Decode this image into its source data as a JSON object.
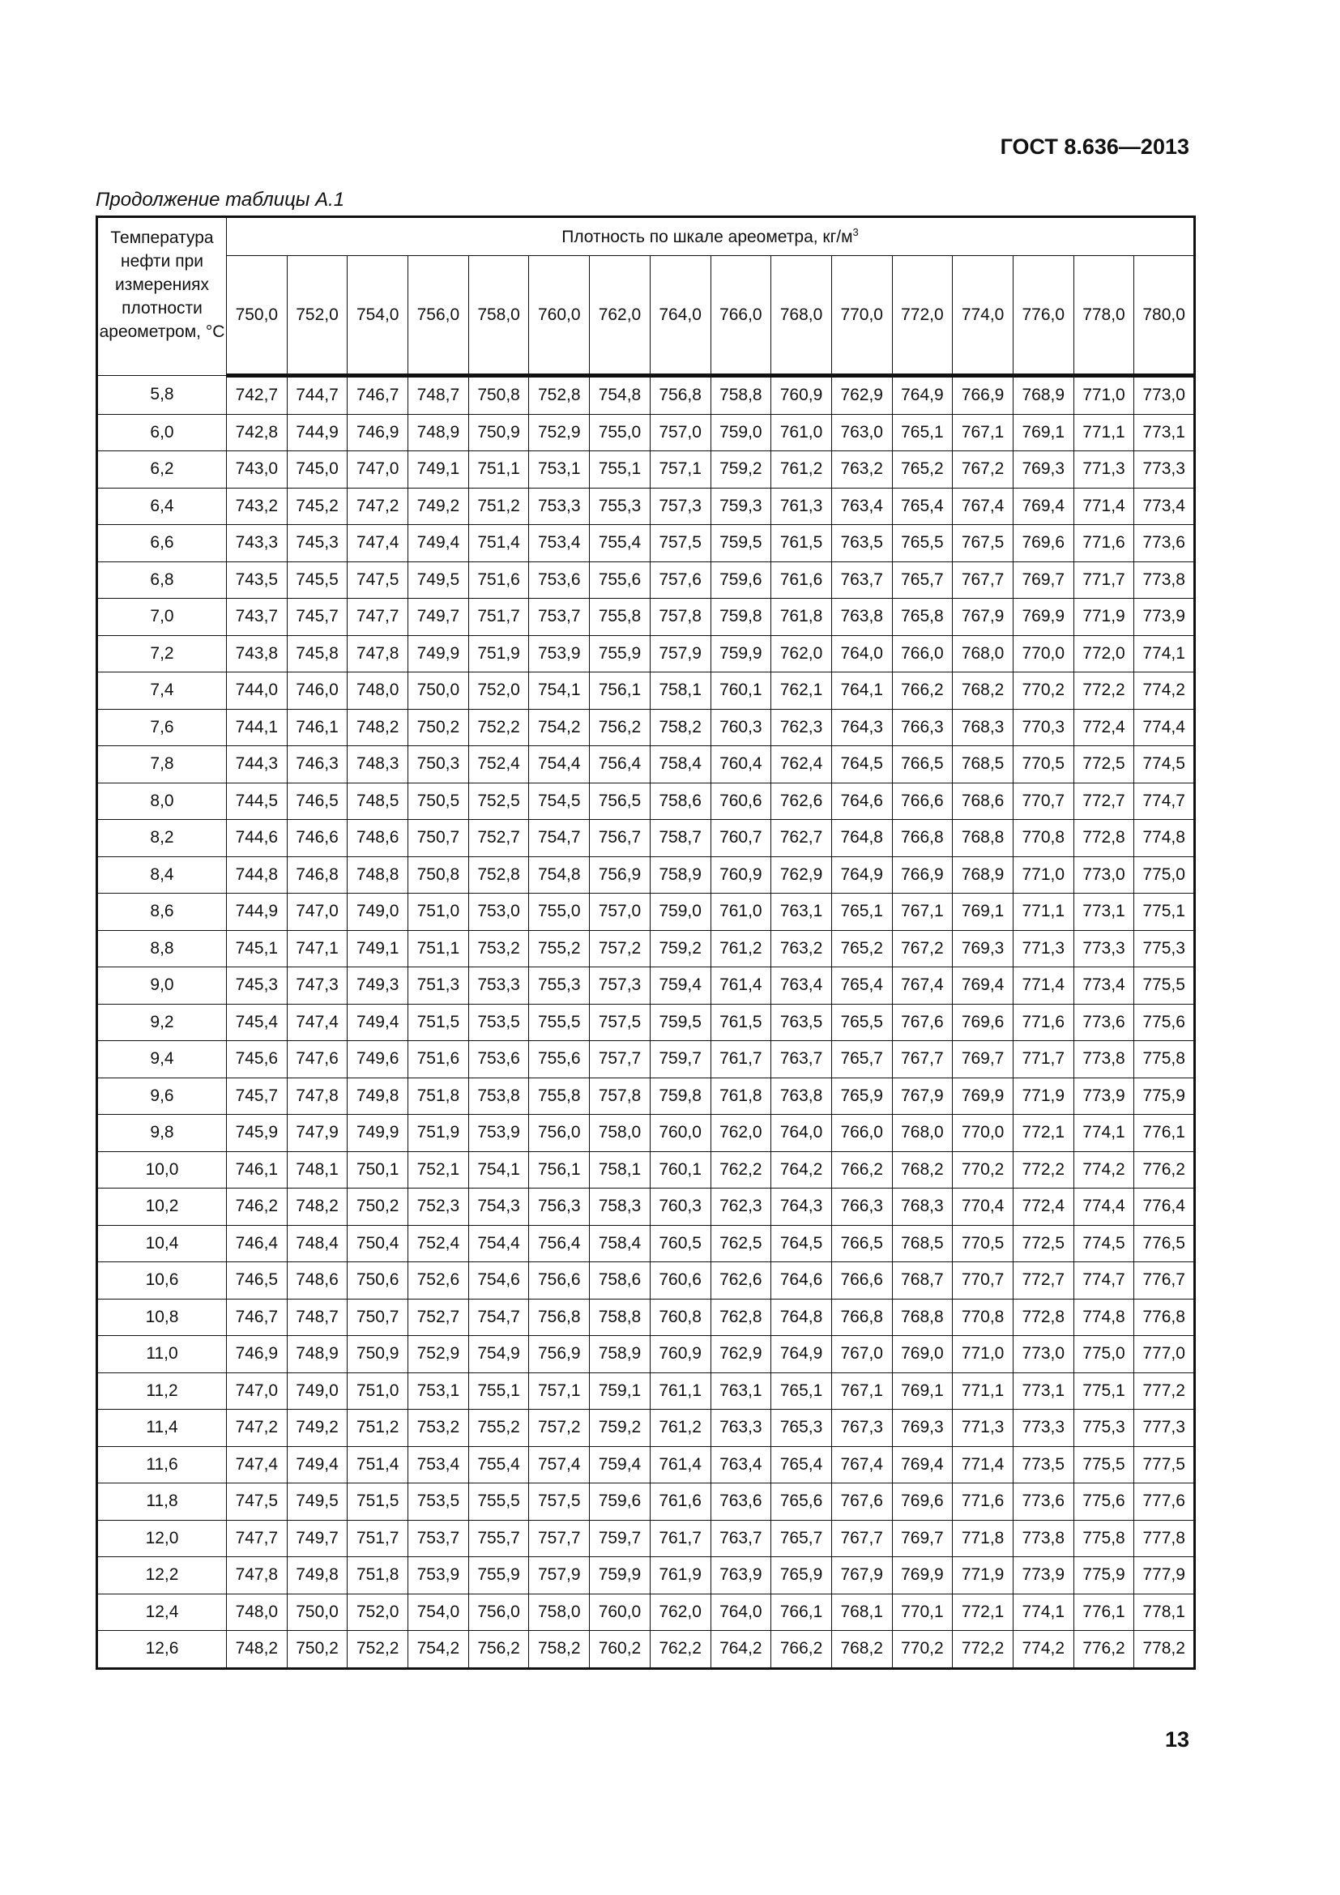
{
  "header": {
    "doc_code": "ГОСТ 8.636—2013"
  },
  "caption": "Продолжение таблицы А.1",
  "table": {
    "temp_header": "Температура нефти при измерениях плотности ареометром, °С",
    "group_header": "Плотность по шкале ареометра, кг/м",
    "group_header_sup": "3",
    "columns": [
      "750,0",
      "752,0",
      "754,0",
      "756,0",
      "758,0",
      "760,0",
      "762,0",
      "764,0",
      "766,0",
      "768,0",
      "770,0",
      "772,0",
      "774,0",
      "776,0",
      "778,0",
      "780,0"
    ],
    "rows": [
      {
        "t": "5,8",
        "v": [
          "742,7",
          "744,7",
          "746,7",
          "748,7",
          "750,8",
          "752,8",
          "754,8",
          "756,8",
          "758,8",
          "760,9",
          "762,9",
          "764,9",
          "766,9",
          "768,9",
          "771,0",
          "773,0"
        ]
      },
      {
        "t": "6,0",
        "v": [
          "742,8",
          "744,9",
          "746,9",
          "748,9",
          "750,9",
          "752,9",
          "755,0",
          "757,0",
          "759,0",
          "761,0",
          "763,0",
          "765,1",
          "767,1",
          "769,1",
          "771,1",
          "773,1"
        ]
      },
      {
        "t": "6,2",
        "v": [
          "743,0",
          "745,0",
          "747,0",
          "749,1",
          "751,1",
          "753,1",
          "755,1",
          "757,1",
          "759,2",
          "761,2",
          "763,2",
          "765,2",
          "767,2",
          "769,3",
          "771,3",
          "773,3"
        ]
      },
      {
        "t": "6,4",
        "v": [
          "743,2",
          "745,2",
          "747,2",
          "749,2",
          "751,2",
          "753,3",
          "755,3",
          "757,3",
          "759,3",
          "761,3",
          "763,4",
          "765,4",
          "767,4",
          "769,4",
          "771,4",
          "773,4"
        ]
      },
      {
        "t": "6,6",
        "v": [
          "743,3",
          "745,3",
          "747,4",
          "749,4",
          "751,4",
          "753,4",
          "755,4",
          "757,5",
          "759,5",
          "761,5",
          "763,5",
          "765,5",
          "767,5",
          "769,6",
          "771,6",
          "773,6"
        ]
      },
      {
        "t": "6,8",
        "v": [
          "743,5",
          "745,5",
          "747,5",
          "749,5",
          "751,6",
          "753,6",
          "755,6",
          "757,6",
          "759,6",
          "761,6",
          "763,7",
          "765,7",
          "767,7",
          "769,7",
          "771,7",
          "773,8"
        ]
      },
      {
        "t": "7,0",
        "v": [
          "743,7",
          "745,7",
          "747,7",
          "749,7",
          "751,7",
          "753,7",
          "755,8",
          "757,8",
          "759,8",
          "761,8",
          "763,8",
          "765,8",
          "767,9",
          "769,9",
          "771,9",
          "773,9"
        ]
      },
      {
        "t": "7,2",
        "v": [
          "743,8",
          "745,8",
          "747,8",
          "749,9",
          "751,9",
          "753,9",
          "755,9",
          "757,9",
          "759,9",
          "762,0",
          "764,0",
          "766,0",
          "768,0",
          "770,0",
          "772,0",
          "774,1"
        ]
      },
      {
        "t": "7,4",
        "v": [
          "744,0",
          "746,0",
          "748,0",
          "750,0",
          "752,0",
          "754,1",
          "756,1",
          "758,1",
          "760,1",
          "762,1",
          "764,1",
          "766,2",
          "768,2",
          "770,2",
          "772,2",
          "774,2"
        ]
      },
      {
        "t": "7,6",
        "v": [
          "744,1",
          "746,1",
          "748,2",
          "750,2",
          "752,2",
          "754,2",
          "756,2",
          "758,2",
          "760,3",
          "762,3",
          "764,3",
          "766,3",
          "768,3",
          "770,3",
          "772,4",
          "774,4"
        ]
      },
      {
        "t": "7,8",
        "v": [
          "744,3",
          "746,3",
          "748,3",
          "750,3",
          "752,4",
          "754,4",
          "756,4",
          "758,4",
          "760,4",
          "762,4",
          "764,5",
          "766,5",
          "768,5",
          "770,5",
          "772,5",
          "774,5"
        ]
      },
      {
        "t": "8,0",
        "v": [
          "744,5",
          "746,5",
          "748,5",
          "750,5",
          "752,5",
          "754,5",
          "756,5",
          "758,6",
          "760,6",
          "762,6",
          "764,6",
          "766,6",
          "768,6",
          "770,7",
          "772,7",
          "774,7"
        ]
      },
      {
        "t": "8,2",
        "v": [
          "744,6",
          "746,6",
          "748,6",
          "750,7",
          "752,7",
          "754,7",
          "756,7",
          "758,7",
          "760,7",
          "762,7",
          "764,8",
          "766,8",
          "768,8",
          "770,8",
          "772,8",
          "774,8"
        ]
      },
      {
        "t": "8,4",
        "v": [
          "744,8",
          "746,8",
          "748,8",
          "750,8",
          "752,8",
          "754,8",
          "756,9",
          "758,9",
          "760,9",
          "762,9",
          "764,9",
          "766,9",
          "768,9",
          "771,0",
          "773,0",
          "775,0"
        ]
      },
      {
        "t": "8,6",
        "v": [
          "744,9",
          "747,0",
          "749,0",
          "751,0",
          "753,0",
          "755,0",
          "757,0",
          "759,0",
          "761,0",
          "763,1",
          "765,1",
          "767,1",
          "769,1",
          "771,1",
          "773,1",
          "775,1"
        ]
      },
      {
        "t": "8,8",
        "v": [
          "745,1",
          "747,1",
          "749,1",
          "751,1",
          "753,2",
          "755,2",
          "757,2",
          "759,2",
          "761,2",
          "763,2",
          "765,2",
          "767,2",
          "769,3",
          "771,3",
          "773,3",
          "775,3"
        ]
      },
      {
        "t": "9,0",
        "v": [
          "745,3",
          "747,3",
          "749,3",
          "751,3",
          "753,3",
          "755,3",
          "757,3",
          "759,4",
          "761,4",
          "763,4",
          "765,4",
          "767,4",
          "769,4",
          "771,4",
          "773,4",
          "775,5"
        ]
      },
      {
        "t": "9,2",
        "v": [
          "745,4",
          "747,4",
          "749,4",
          "751,5",
          "753,5",
          "755,5",
          "757,5",
          "759,5",
          "761,5",
          "763,5",
          "765,5",
          "767,6",
          "769,6",
          "771,6",
          "773,6",
          "775,6"
        ]
      },
      {
        "t": "9,4",
        "v": [
          "745,6",
          "747,6",
          "749,6",
          "751,6",
          "753,6",
          "755,6",
          "757,7",
          "759,7",
          "761,7",
          "763,7",
          "765,7",
          "767,7",
          "769,7",
          "771,7",
          "773,8",
          "775,8"
        ]
      },
      {
        "t": "9,6",
        "v": [
          "745,7",
          "747,8",
          "749,8",
          "751,8",
          "753,8",
          "755,8",
          "757,8",
          "759,8",
          "761,8",
          "763,8",
          "765,9",
          "767,9",
          "769,9",
          "771,9",
          "773,9",
          "775,9"
        ]
      },
      {
        "t": "9,8",
        "v": [
          "745,9",
          "747,9",
          "749,9",
          "751,9",
          "753,9",
          "756,0",
          "758,0",
          "760,0",
          "762,0",
          "764,0",
          "766,0",
          "768,0",
          "770,0",
          "772,1",
          "774,1",
          "776,1"
        ]
      },
      {
        "t": "10,0",
        "v": [
          "746,1",
          "748,1",
          "750,1",
          "752,1",
          "754,1",
          "756,1",
          "758,1",
          "760,1",
          "762,2",
          "764,2",
          "766,2",
          "768,2",
          "770,2",
          "772,2",
          "774,2",
          "776,2"
        ]
      },
      {
        "t": "10,2",
        "v": [
          "746,2",
          "748,2",
          "750,2",
          "752,3",
          "754,3",
          "756,3",
          "758,3",
          "760,3",
          "762,3",
          "764,3",
          "766,3",
          "768,3",
          "770,4",
          "772,4",
          "774,4",
          "776,4"
        ]
      },
      {
        "t": "10,4",
        "v": [
          "746,4",
          "748,4",
          "750,4",
          "752,4",
          "754,4",
          "756,4",
          "758,4",
          "760,5",
          "762,5",
          "764,5",
          "766,5",
          "768,5",
          "770,5",
          "772,5",
          "774,5",
          "776,5"
        ]
      },
      {
        "t": "10,6",
        "v": [
          "746,5",
          "748,6",
          "750,6",
          "752,6",
          "754,6",
          "756,6",
          "758,6",
          "760,6",
          "762,6",
          "764,6",
          "766,6",
          "768,7",
          "770,7",
          "772,7",
          "774,7",
          "776,7"
        ]
      },
      {
        "t": "10,8",
        "v": [
          "746,7",
          "748,7",
          "750,7",
          "752,7",
          "754,7",
          "756,8",
          "758,8",
          "760,8",
          "762,8",
          "764,8",
          "766,8",
          "768,8",
          "770,8",
          "772,8",
          "774,8",
          "776,8"
        ]
      },
      {
        "t": "11,0",
        "v": [
          "746,9",
          "748,9",
          "750,9",
          "752,9",
          "754,9",
          "756,9",
          "758,9",
          "760,9",
          "762,9",
          "764,9",
          "767,0",
          "769,0",
          "771,0",
          "773,0",
          "775,0",
          "777,0"
        ]
      },
      {
        "t": "11,2",
        "v": [
          "747,0",
          "749,0",
          "751,0",
          "753,1",
          "755,1",
          "757,1",
          "759,1",
          "761,1",
          "763,1",
          "765,1",
          "767,1",
          "769,1",
          "771,1",
          "773,1",
          "775,1",
          "777,2"
        ]
      },
      {
        "t": "11,4",
        "v": [
          "747,2",
          "749,2",
          "751,2",
          "753,2",
          "755,2",
          "757,2",
          "759,2",
          "761,2",
          "763,3",
          "765,3",
          "767,3",
          "769,3",
          "771,3",
          "773,3",
          "775,3",
          "777,3"
        ]
      },
      {
        "t": "11,6",
        "v": [
          "747,4",
          "749,4",
          "751,4",
          "753,4",
          "755,4",
          "757,4",
          "759,4",
          "761,4",
          "763,4",
          "765,4",
          "767,4",
          "769,4",
          "771,4",
          "773,5",
          "775,5",
          "777,5"
        ]
      },
      {
        "t": "11,8",
        "v": [
          "747,5",
          "749,5",
          "751,5",
          "753,5",
          "755,5",
          "757,5",
          "759,6",
          "761,6",
          "763,6",
          "765,6",
          "767,6",
          "769,6",
          "771,6",
          "773,6",
          "775,6",
          "777,6"
        ]
      },
      {
        "t": "12,0",
        "v": [
          "747,7",
          "749,7",
          "751,7",
          "753,7",
          "755,7",
          "757,7",
          "759,7",
          "761,7",
          "763,7",
          "765,7",
          "767,7",
          "769,7",
          "771,8",
          "773,8",
          "775,8",
          "777,8"
        ]
      },
      {
        "t": "12,2",
        "v": [
          "747,8",
          "749,8",
          "751,8",
          "753,9",
          "755,9",
          "757,9",
          "759,9",
          "761,9",
          "763,9",
          "765,9",
          "767,9",
          "769,9",
          "771,9",
          "773,9",
          "775,9",
          "777,9"
        ]
      },
      {
        "t": "12,4",
        "v": [
          "748,0",
          "750,0",
          "752,0",
          "754,0",
          "756,0",
          "758,0",
          "760,0",
          "762,0",
          "764,0",
          "766,1",
          "768,1",
          "770,1",
          "772,1",
          "774,1",
          "776,1",
          "778,1"
        ]
      },
      {
        "t": "12,6",
        "v": [
          "748,2",
          "750,2",
          "752,2",
          "754,2",
          "756,2",
          "758,2",
          "760,2",
          "762,2",
          "764,2",
          "766,2",
          "768,2",
          "770,2",
          "772,2",
          "774,2",
          "776,2",
          "778,2"
        ]
      }
    ]
  },
  "footer": {
    "page_number": "13"
  }
}
